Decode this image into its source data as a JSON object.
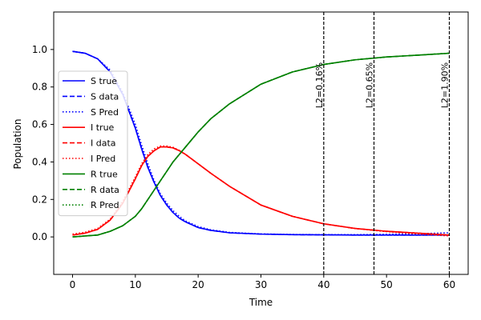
{
  "chart_data": {
    "type": "line",
    "title": "",
    "xlabel": "Time",
    "ylabel": "Population",
    "xlim": [
      -3,
      63
    ],
    "ylim": [
      -0.2,
      1.2
    ],
    "xticks": [
      0,
      10,
      20,
      30,
      40,
      50,
      60
    ],
    "xtick_labels": [
      "0",
      "10",
      "20",
      "30",
      "40",
      "50",
      "60"
    ],
    "yticks": [
      0.0,
      0.2,
      0.4,
      0.6,
      0.8,
      1.0
    ],
    "ytick_labels": [
      "0.0",
      "0.2",
      "0.4",
      "0.6",
      "0.8",
      "1.0"
    ],
    "grid": false,
    "legend_position": "center-left",
    "x": [
      0,
      2,
      4,
      6,
      8,
      10,
      11,
      12,
      13,
      14,
      15,
      16,
      17,
      18,
      20,
      22,
      25,
      30,
      35,
      40,
      45,
      50,
      55,
      60
    ],
    "series": [
      {
        "name": "S true",
        "color": "#0000ff",
        "dash": "solid",
        "values": [
          0.99,
          0.98,
          0.95,
          0.88,
          0.76,
          0.58,
          0.47,
          0.37,
          0.29,
          0.22,
          0.17,
          0.13,
          0.1,
          0.08,
          0.05,
          0.035,
          0.022,
          0.015,
          0.012,
          0.011,
          0.01,
          0.01,
          0.01,
          0.01
        ]
      },
      {
        "name": "S data",
        "color": "#0000ff",
        "dash": "dashed",
        "values": [
          0.99,
          0.98,
          0.95,
          0.88,
          0.76,
          0.58,
          0.47,
          0.37,
          0.29,
          0.22,
          0.17,
          0.13,
          0.1,
          0.08,
          0.05,
          0.035,
          0.022,
          0.015,
          0.012,
          0.011,
          0.01,
          0.01,
          0.01,
          0.01
        ]
      },
      {
        "name": "S Pred",
        "color": "#0000ff",
        "dash": "dotted",
        "values": [
          0.99,
          0.98,
          0.95,
          0.89,
          0.77,
          0.6,
          0.49,
          0.39,
          0.3,
          0.23,
          0.18,
          0.14,
          0.11,
          0.085,
          0.055,
          0.038,
          0.024,
          0.016,
          0.013,
          0.012,
          0.012,
          0.014,
          0.017,
          0.022
        ]
      },
      {
        "name": "I true",
        "color": "#ff0000",
        "dash": "solid",
        "values": [
          0.01,
          0.02,
          0.04,
          0.09,
          0.18,
          0.31,
          0.38,
          0.43,
          0.46,
          0.48,
          0.48,
          0.475,
          0.46,
          0.44,
          0.39,
          0.34,
          0.27,
          0.17,
          0.11,
          0.07,
          0.045,
          0.03,
          0.02,
          0.01
        ]
      },
      {
        "name": "I data",
        "color": "#ff0000",
        "dash": "dashed",
        "values": [
          0.01,
          0.02,
          0.04,
          0.09,
          0.18,
          0.31,
          0.38,
          0.43,
          0.46,
          0.48,
          0.48,
          0.475,
          0.46,
          0.44,
          0.39,
          0.34,
          0.27,
          0.17,
          0.11,
          0.07,
          0.045,
          0.03,
          0.02,
          0.01
        ]
      },
      {
        "name": "I Pred",
        "color": "#ff0000",
        "dash": "dotted",
        "values": [
          0.015,
          0.025,
          0.045,
          0.095,
          0.19,
          0.32,
          0.39,
          0.44,
          0.47,
          0.485,
          0.485,
          0.478,
          0.462,
          0.44,
          0.39,
          0.34,
          0.27,
          0.17,
          0.11,
          0.07,
          0.045,
          0.028,
          0.016,
          0.005
        ]
      },
      {
        "name": "R true",
        "color": "#008000",
        "dash": "solid",
        "values": [
          0.0,
          0.005,
          0.01,
          0.03,
          0.06,
          0.11,
          0.15,
          0.2,
          0.25,
          0.3,
          0.35,
          0.4,
          0.44,
          0.48,
          0.56,
          0.63,
          0.71,
          0.815,
          0.88,
          0.92,
          0.945,
          0.96,
          0.97,
          0.98
        ]
      },
      {
        "name": "R data",
        "color": "#008000",
        "dash": "dashed",
        "values": [
          0.0,
          0.005,
          0.01,
          0.03,
          0.06,
          0.11,
          0.15,
          0.2,
          0.25,
          0.3,
          0.35,
          0.4,
          0.44,
          0.48,
          0.56,
          0.63,
          0.71,
          0.815,
          0.88,
          0.92,
          0.945,
          0.96,
          0.97,
          0.98
        ]
      },
      {
        "name": "R Pred",
        "color": "#008000",
        "dash": "dotted",
        "values": [
          0.0,
          0.005,
          0.01,
          0.03,
          0.06,
          0.11,
          0.15,
          0.2,
          0.25,
          0.3,
          0.35,
          0.4,
          0.44,
          0.48,
          0.56,
          0.63,
          0.71,
          0.815,
          0.88,
          0.92,
          0.945,
          0.96,
          0.97,
          0.98
        ]
      }
    ],
    "vlines": [
      {
        "x": 40,
        "label": "L2=0.16%"
      },
      {
        "x": 48,
        "label": "L2=0.65%"
      },
      {
        "x": 60,
        "label": "L2=1.90%"
      }
    ],
    "vline_label_y": 0.96
  }
}
